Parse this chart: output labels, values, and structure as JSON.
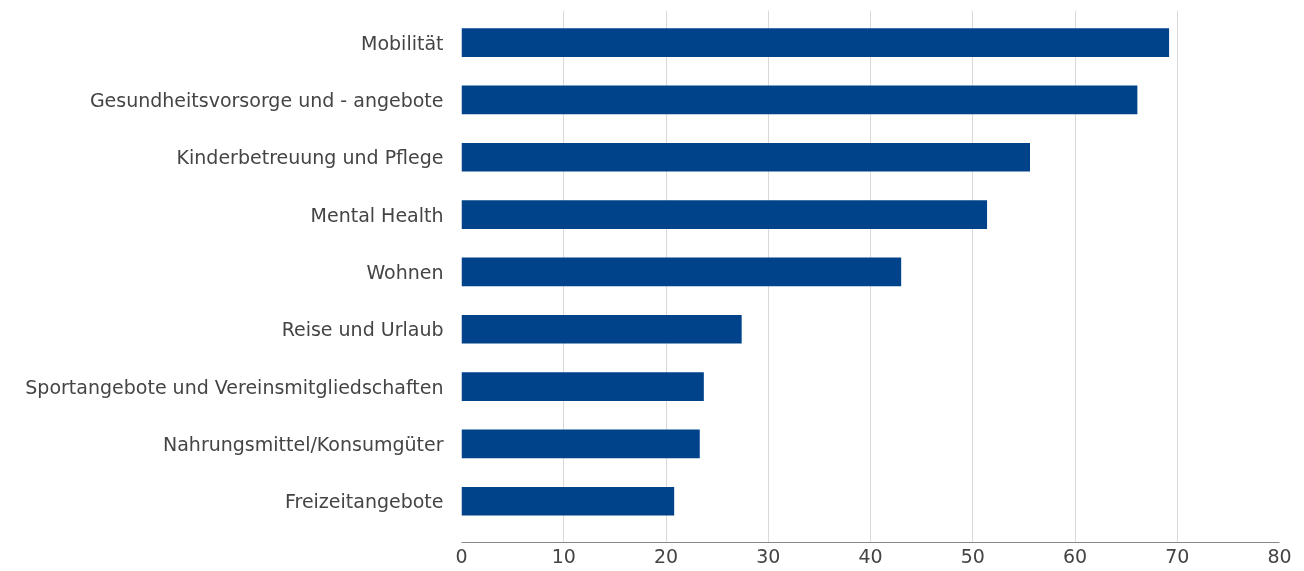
{
  "chart_data": {
    "type": "bar",
    "orientation": "horizontal",
    "categories": [
      "Mobilität",
      "Gesundheitsvorsorge und - angebote",
      "Kinderbetreuung und Pflege",
      "Mental Health",
      "Wohnen",
      "Reise und Urlaub",
      "Sportangebote und Vereinsmitgliedschaften",
      "Nahrungsmittel/Konsumgüter",
      "Freizeitangebote"
    ],
    "values": [
      69.2,
      66.1,
      55.6,
      51.4,
      43.0,
      27.4,
      23.7,
      23.3,
      20.8
    ],
    "color": "#00438a",
    "xlim": [
      0,
      80
    ],
    "xticks": [
      0,
      10,
      20,
      30,
      40,
      50,
      60,
      70,
      80
    ],
    "grid": "x"
  }
}
